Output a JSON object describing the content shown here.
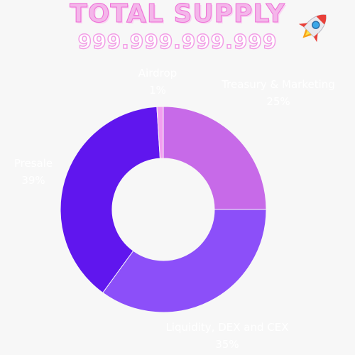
{
  "header": {
    "title": "TOTAL SUPPLY",
    "supply": "999.999.999.999",
    "icon": "rocket-icon"
  },
  "colors": {
    "background": "#f7f7f7",
    "title": "#f4b6ea"
  },
  "chart_data": {
    "type": "pie",
    "donut": true,
    "title": "",
    "slices": [
      {
        "label": "Treasury & Marketing",
        "value": 25,
        "display": "25%",
        "color": "#c76ae8"
      },
      {
        "label": "Liquidity, DEX and CEX",
        "value": 35,
        "display": "35%",
        "color": "#8c4ff9"
      },
      {
        "label": "Presale",
        "value": 39,
        "display": "39%",
        "color": "#6016ee"
      },
      {
        "label": "Airdrop",
        "value": 1,
        "display": "1%",
        "color": "#f29ef0"
      }
    ]
  }
}
